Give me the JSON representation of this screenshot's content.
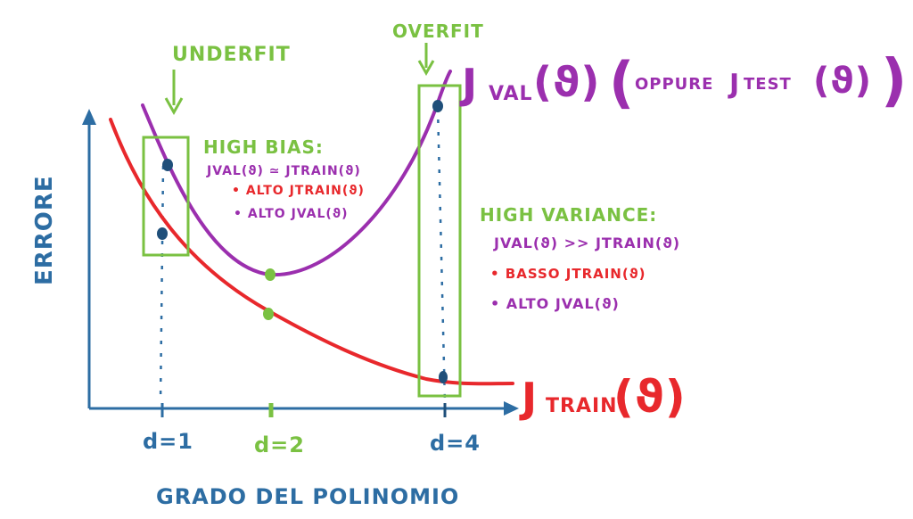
{
  "axes": {
    "y_label": "ERRORE",
    "x_label": "GRADO DEL POLINOMIO",
    "ticks": [
      "d=1",
      "d=2",
      "d=4"
    ]
  },
  "labels": {
    "underfit": "UNDERFIT",
    "overfit": "OVERFIT",
    "jval_curve": "J",
    "jval_curve_sub": "VAL",
    "jval_curve_arg": "(ϑ)",
    "jval_paren_open": "(",
    "jval_oppure": "OPPURE",
    "jval_jtest": "J",
    "jval_jtest_sub": "TEST",
    "jval_jtest_arg": "(ϑ)",
    "jval_paren_close": ")",
    "jtrain_curve": "J",
    "jtrain_curve_sub": "TRAIN",
    "jtrain_curve_arg": "(ϑ)"
  },
  "high_bias": {
    "title": "HIGH BIAS:",
    "relation": "JVAL(ϑ) ≃ JTRAIN(ϑ)",
    "item1": "• ALTO JTRAIN(ϑ)",
    "item2": "• ALTO JVAL(ϑ)"
  },
  "high_variance": {
    "title": "HIGH VARIANCE:",
    "relation": "JVAL(ϑ) >> JTRAIN(ϑ)",
    "item1": "• BASSO JTRAIN(ϑ)",
    "item2": "• ALTO JVAL(ϑ)"
  },
  "colors": {
    "axis": "#2d6da3",
    "train": "#e8282c",
    "val": "#9b2fae",
    "green": "#7ac142",
    "marker": "#1f4f7a"
  }
}
